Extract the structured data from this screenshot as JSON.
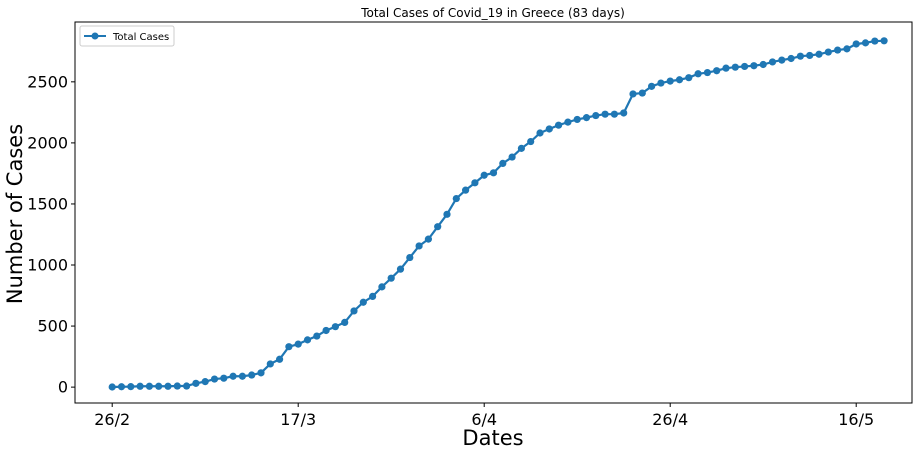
{
  "chart_data": {
    "type": "line",
    "title": "Total Cases of Covid_19 in Greece (83 days)",
    "xlabel": "Dates",
    "ylabel": "Number of Cases",
    "x_tick_labels": [
      "26/2",
      "17/3",
      "6/4",
      "26/4",
      "16/5"
    ],
    "x_tick_days": [
      0,
      20,
      40,
      60,
      80
    ],
    "yticks": [
      0,
      500,
      1000,
      1500,
      2000,
      2500
    ],
    "xlim": [
      -4,
      86
    ],
    "ylim": [
      -130,
      2990
    ],
    "grid": false,
    "legend_position": "upper-left",
    "series": [
      {
        "name": "Total Cases",
        "color": "#1f77b4",
        "marker": "circle",
        "values": [
          1,
          3,
          4,
          7,
          7,
          7,
          7,
          9,
          9,
          31,
          45,
          66,
          73,
          89,
          89,
          99,
          117,
          190,
          228,
          331,
          352,
          387,
          418,
          464,
          495,
          530,
          624,
          695,
          743,
          821,
          892,
          966,
          1061,
          1156,
          1212,
          1314,
          1415,
          1544,
          1613,
          1673,
          1735,
          1755,
          1832,
          1884,
          1955,
          2011,
          2081,
          2114,
          2145,
          2170,
          2192,
          2207,
          2224,
          2235,
          2235,
          2245,
          2401,
          2408,
          2463,
          2490,
          2506,
          2517,
          2534,
          2566,
          2576,
          2591,
          2612,
          2620,
          2626,
          2632,
          2642,
          2663,
          2678,
          2691,
          2710,
          2716,
          2726,
          2744,
          2760,
          2770,
          2810,
          2819,
          2834,
          2836
        ]
      }
    ]
  }
}
